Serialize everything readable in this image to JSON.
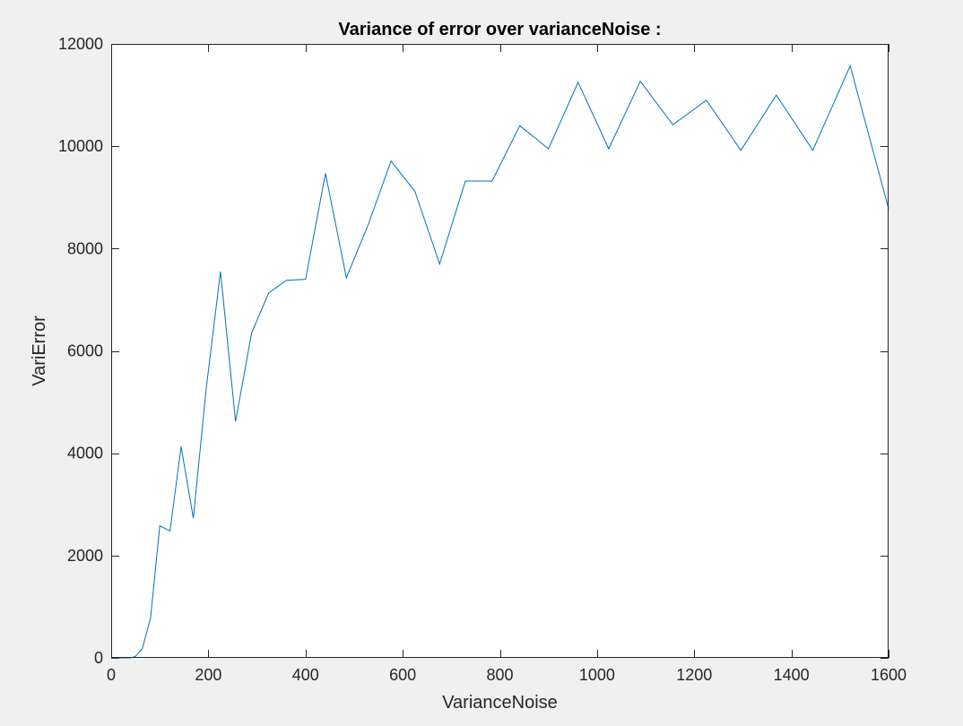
{
  "chart_data": {
    "type": "line",
    "title": "Variance of error over varianceNoise :",
    "xlabel": "VarianceNoise",
    "ylabel": "VariError",
    "xlim": [
      0,
      1600
    ],
    "ylim": [
      0,
      12000
    ],
    "xticks": [
      0,
      200,
      400,
      600,
      800,
      1000,
      1200,
      1400,
      1600
    ],
    "yticks": [
      0,
      2000,
      4000,
      6000,
      8000,
      10000,
      12000
    ],
    "grid": false,
    "legend": "none",
    "series": [
      {
        "color": "#0072BD",
        "x": [
          0,
          40,
          50,
          64,
          81,
          100,
          121,
          144,
          169,
          196,
          225,
          256,
          289,
          324,
          361,
          400,
          441,
          484,
          529,
          576,
          625,
          676,
          729,
          784,
          841,
          900,
          961,
          1024,
          1089,
          1156,
          1225,
          1296,
          1369,
          1444,
          1521,
          1600
        ],
        "y": [
          0,
          0,
          30,
          180,
          780,
          2580,
          2480,
          4130,
          2730,
          5300,
          7550,
          4620,
          6350,
          7130,
          7380,
          7400,
          9470,
          7430,
          8470,
          9710,
          9120,
          7700,
          9320,
          9320,
          10400,
          9950,
          11250,
          9950,
          11270,
          10420,
          10900,
          9920,
          11000,
          9920,
          11570,
          8780
        ]
      }
    ]
  }
}
